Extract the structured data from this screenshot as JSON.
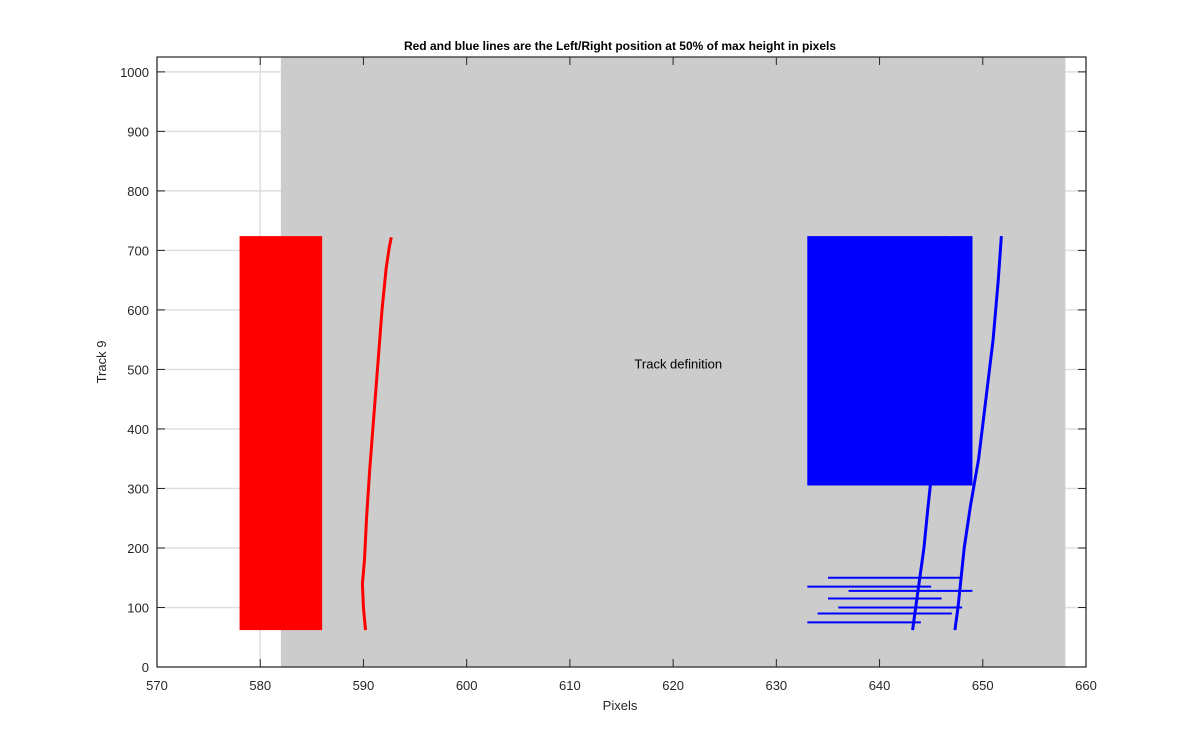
{
  "chart_data": {
    "type": "line",
    "title": "Red and blue lines are the Left/Right position at 50% of max height in pixels",
    "xlabel": "Pixels",
    "ylabel": "Track 9",
    "xlim": [
      570,
      660
    ],
    "ylim": [
      0,
      1025
    ],
    "xticks": [
      570,
      580,
      590,
      600,
      610,
      620,
      630,
      640,
      650,
      660
    ],
    "yticks": [
      0,
      100,
      200,
      300,
      400,
      500,
      600,
      700,
      800,
      900,
      1000
    ],
    "grid": true,
    "annotation": {
      "text": "Track definition",
      "x": 620.5,
      "y": 510
    },
    "regions": [
      {
        "x0": 582,
        "x1": 658,
        "y0": 0,
        "y1": 1025,
        "color": "#cccccc"
      }
    ],
    "series": [
      {
        "color": "#ff0000",
        "kind": "band",
        "x_range": [
          578,
          586
        ],
        "y_range": [
          62,
          724
        ]
      },
      {
        "color": "#ff0000",
        "kind": "line",
        "x": [
          590.2,
          590.0,
          589.9,
          590.1,
          590.3,
          590.6,
          591.0,
          591.4,
          591.8,
          592.2,
          592.5,
          592.7
        ],
        "y": [
          62,
          100,
          140,
          180,
          250,
          330,
          420,
          510,
          600,
          670,
          705,
          722
        ]
      },
      {
        "color": "#0000ff",
        "kind": "band",
        "x_range": [
          633,
          649
        ],
        "y_range": [
          305,
          724
        ]
      },
      {
        "color": "#0000ff",
        "kind": "line",
        "x": [
          643.2,
          643.5,
          643.9,
          644.3,
          644.7,
          645.2,
          645.6,
          646.0,
          646.3,
          646.5
        ],
        "y": [
          62,
          100,
          150,
          200,
          270,
          350,
          450,
          550,
          650,
          724
        ]
      },
      {
        "color": "#0000ff",
        "kind": "line",
        "x": [
          647.3,
          647.6,
          647.9,
          648.2,
          648.8,
          649.6,
          650.3,
          651.0,
          651.5,
          651.8
        ],
        "y": [
          62,
          100,
          150,
          200,
          270,
          350,
          450,
          550,
          650,
          724
        ]
      },
      {
        "color": "#0000ff",
        "kind": "bursts",
        "x_start": [
          633,
          634,
          636,
          635,
          637,
          633,
          635
        ],
        "x_end": [
          644,
          647,
          648,
          646,
          649,
          645,
          648
        ],
        "y": [
          75,
          90,
          100,
          115,
          128,
          135,
          150
        ]
      }
    ]
  }
}
